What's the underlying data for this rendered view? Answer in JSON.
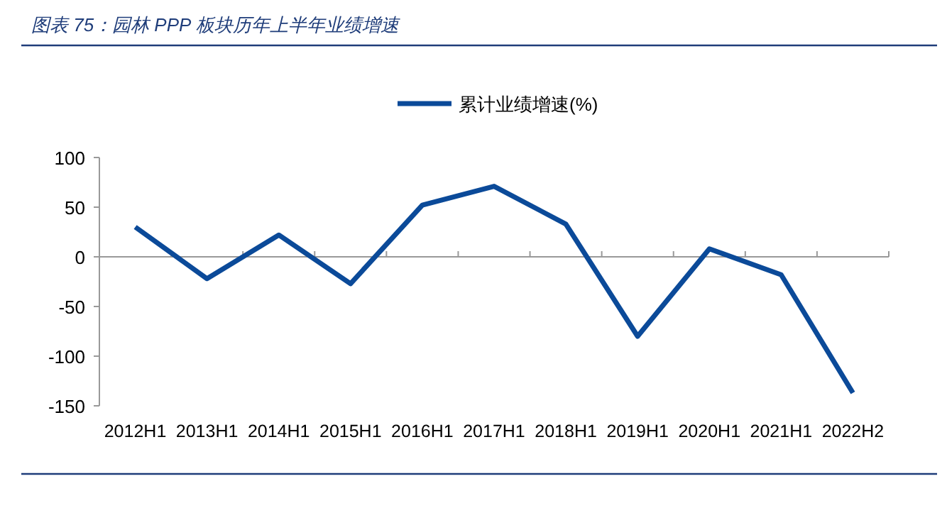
{
  "chart_data": {
    "type": "line",
    "title": "图表 75：园林 PPP 板块历年上半年业绩增速",
    "categories": [
      "2012H1",
      "2013H1",
      "2014H1",
      "2015H1",
      "2016H1",
      "2017H1",
      "2018H1",
      "2019H1",
      "2020H1",
      "2021H1",
      "2022H2"
    ],
    "series": [
      {
        "name": "累计业绩增速(%)",
        "color": "#0b4a99",
        "values": [
          30,
          -22,
          22,
          -27,
          52,
          71,
          33,
          -80,
          8,
          -18,
          -137
        ]
      }
    ],
    "ylim": [
      -150,
      100
    ],
    "yticks": [
      -150,
      -100,
      -50,
      0,
      50,
      100
    ],
    "legend": "top",
    "line_style": "solid"
  }
}
